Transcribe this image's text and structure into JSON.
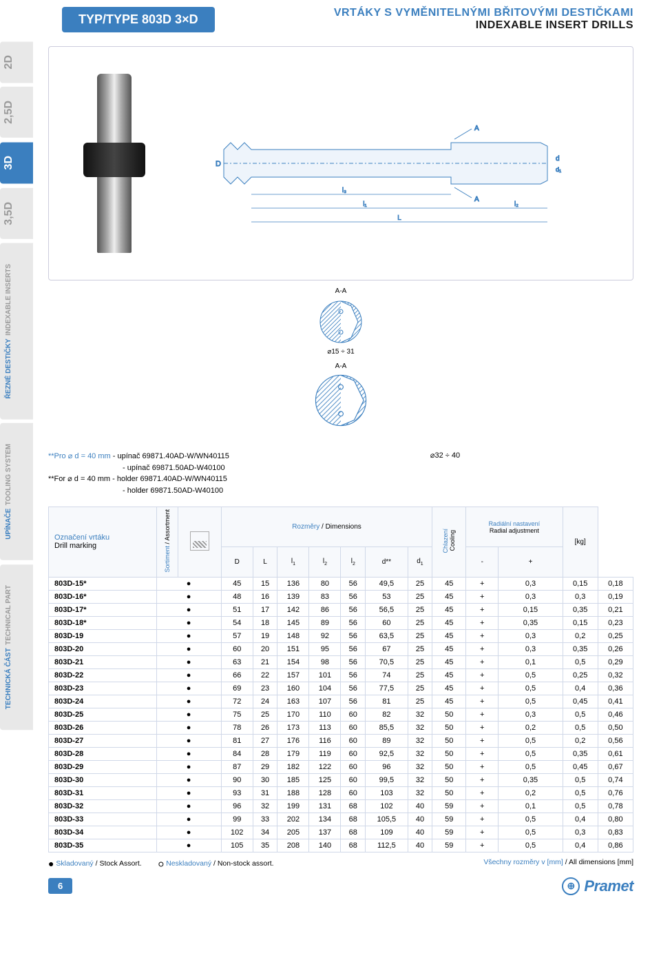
{
  "header": {
    "type_badge": "TYP/TYPE 803D 3×D",
    "title_cz": "VRTÁKY S VYMĚNITELNÝMI BŘITOVÝMI DESTIČKAMI",
    "title_en": "INDEXABLE INSERT DRILLS"
  },
  "side_tabs": [
    {
      "label": "2D",
      "active": false,
      "height": "std"
    },
    {
      "label": "2,5D",
      "active": false,
      "height": "std"
    },
    {
      "label": "3D",
      "active": true,
      "height": "std"
    },
    {
      "label": "3,5D",
      "active": false,
      "height": "std"
    },
    {
      "label_cz": "ŘEZNÉ DESTIČKY",
      "label_en": "INDEXABLE INSERTS",
      "active": false,
      "height": "tall",
      "multi": true
    },
    {
      "label_cz": "UPÍNAČE",
      "label_en": "TOOLING SYSTEM",
      "active": false,
      "height": "tall",
      "multi": true
    },
    {
      "label_cz": "TECHNICKÁ ČÁST",
      "label_en": "TECHNICAL PART",
      "active": false,
      "height": "tall",
      "multi": true
    }
  ],
  "schematic": {
    "dim_labels": [
      "D",
      "l₃",
      "l₁",
      "L",
      "A",
      "A",
      "l₂",
      "d",
      "d₁"
    ],
    "section_label": "A-A",
    "dia_small": "⌀15 ÷ 31",
    "dia_large": "⌀32 ÷ 40"
  },
  "notes": {
    "cz_prefix": "**Pro ⌀ d = 40 mm",
    "cz_line1": "- upínač 69871.40AD-W/WN40115",
    "cz_line2": "- upínač 69871.50AD-W40100",
    "en_prefix": "**For ⌀ d = 40 mm",
    "en_line1": "- holder 69871.40AD-W/WN40115",
    "en_line2": "- holder 69871.50AD-W40100"
  },
  "table": {
    "header": {
      "marking_cz": "Označení vrtáku",
      "marking_en": "Drill marking",
      "sortiment_cz": "Sortiment",
      "sortiment_en": "Assortment",
      "dimensions_cz": "Rozměry",
      "dimensions_en": "Dimensions",
      "cooling_cz": "Chlazení",
      "cooling_en": "Cooling",
      "radial_cz": "Radiální nastavení",
      "radial_en": "Radial adjustment",
      "weight": "[kg]",
      "cols": [
        "D",
        "L",
        "l₁",
        "l₂",
        "l₂",
        "d**",
        "d₁"
      ],
      "radial_cols": [
        "-",
        "+"
      ]
    },
    "rows": [
      {
        "marking": "803D-15*",
        "sort": "●",
        "D": "45",
        "L": "15",
        "l1": "136",
        "l2a": "80",
        "l2b": "56",
        "d_star": "49,5",
        "d1": "25",
        "extra": "45",
        "cool": "+",
        "rminus": "0,3",
        "rplus": "0,15",
        "kg": "0,18"
      },
      {
        "marking": "803D-16*",
        "sort": "●",
        "D": "48",
        "L": "16",
        "l1": "139",
        "l2a": "83",
        "l2b": "56",
        "d_star": "53",
        "d1": "25",
        "extra": "45",
        "cool": "+",
        "rminus": "0,3",
        "rplus": "0,3",
        "kg": "0,19"
      },
      {
        "marking": "803D-17*",
        "sort": "●",
        "D": "51",
        "L": "17",
        "l1": "142",
        "l2a": "86",
        "l2b": "56",
        "d_star": "56,5",
        "d1": "25",
        "extra": "45",
        "cool": "+",
        "rminus": "0,15",
        "rplus": "0,35",
        "kg": "0,21"
      },
      {
        "marking": "803D-18*",
        "sort": "●",
        "D": "54",
        "L": "18",
        "l1": "145",
        "l2a": "89",
        "l2b": "56",
        "d_star": "60",
        "d1": "25",
        "extra": "45",
        "cool": "+",
        "rminus": "0,35",
        "rplus": "0,15",
        "kg": "0,23"
      },
      {
        "marking": "803D-19",
        "sort": "●",
        "D": "57",
        "L": "19",
        "l1": "148",
        "l2a": "92",
        "l2b": "56",
        "d_star": "63,5",
        "d1": "25",
        "extra": "45",
        "cool": "+",
        "rminus": "0,3",
        "rplus": "0,2",
        "kg": "0,25"
      },
      {
        "marking": "803D-20",
        "sort": "●",
        "D": "60",
        "L": "20",
        "l1": "151",
        "l2a": "95",
        "l2b": "56",
        "d_star": "67",
        "d1": "25",
        "extra": "45",
        "cool": "+",
        "rminus": "0,3",
        "rplus": "0,35",
        "kg": "0,26"
      },
      {
        "marking": "803D-21",
        "sort": "●",
        "D": "63",
        "L": "21",
        "l1": "154",
        "l2a": "98",
        "l2b": "56",
        "d_star": "70,5",
        "d1": "25",
        "extra": "45",
        "cool": "+",
        "rminus": "0,1",
        "rplus": "0,5",
        "kg": "0,29"
      },
      {
        "marking": "803D-22",
        "sort": "●",
        "D": "66",
        "L": "22",
        "l1": "157",
        "l2a": "101",
        "l2b": "56",
        "d_star": "74",
        "d1": "25",
        "extra": "45",
        "cool": "+",
        "rminus": "0,5",
        "rplus": "0,25",
        "kg": "0,32"
      },
      {
        "marking": "803D-23",
        "sort": "●",
        "D": "69",
        "L": "23",
        "l1": "160",
        "l2a": "104",
        "l2b": "56",
        "d_star": "77,5",
        "d1": "25",
        "extra": "45",
        "cool": "+",
        "rminus": "0,5",
        "rplus": "0,4",
        "kg": "0,36"
      },
      {
        "marking": "803D-24",
        "sort": "●",
        "D": "72",
        "L": "24",
        "l1": "163",
        "l2a": "107",
        "l2b": "56",
        "d_star": "81",
        "d1": "25",
        "extra": "45",
        "cool": "+",
        "rminus": "0,5",
        "rplus": "0,45",
        "kg": "0,41"
      },
      {
        "marking": "803D-25",
        "sort": "●",
        "D": "75",
        "L": "25",
        "l1": "170",
        "l2a": "110",
        "l2b": "60",
        "d_star": "82",
        "d1": "32",
        "extra": "50",
        "cool": "+",
        "rminus": "0,3",
        "rplus": "0,5",
        "kg": "0,46"
      },
      {
        "marking": "803D-26",
        "sort": "●",
        "D": "78",
        "L": "26",
        "l1": "173",
        "l2a": "113",
        "l2b": "60",
        "d_star": "85,5",
        "d1": "32",
        "extra": "50",
        "cool": "+",
        "rminus": "0,2",
        "rplus": "0,5",
        "kg": "0,50"
      },
      {
        "marking": "803D-27",
        "sort": "●",
        "D": "81",
        "L": "27",
        "l1": "176",
        "l2a": "116",
        "l2b": "60",
        "d_star": "89",
        "d1": "32",
        "extra": "50",
        "cool": "+",
        "rminus": "0,5",
        "rplus": "0,2",
        "kg": "0,56"
      },
      {
        "marking": "803D-28",
        "sort": "●",
        "D": "84",
        "L": "28",
        "l1": "179",
        "l2a": "119",
        "l2b": "60",
        "d_star": "92,5",
        "d1": "32",
        "extra": "50",
        "cool": "+",
        "rminus": "0,5",
        "rplus": "0,35",
        "kg": "0,61"
      },
      {
        "marking": "803D-29",
        "sort": "●",
        "D": "87",
        "L": "29",
        "l1": "182",
        "l2a": "122",
        "l2b": "60",
        "d_star": "96",
        "d1": "32",
        "extra": "50",
        "cool": "+",
        "rminus": "0,5",
        "rplus": "0,45",
        "kg": "0,67"
      },
      {
        "marking": "803D-30",
        "sort": "●",
        "D": "90",
        "L": "30",
        "l1": "185",
        "l2a": "125",
        "l2b": "60",
        "d_star": "99,5",
        "d1": "32",
        "extra": "50",
        "cool": "+",
        "rminus": "0,35",
        "rplus": "0,5",
        "kg": "0,74"
      },
      {
        "marking": "803D-31",
        "sort": "●",
        "D": "93",
        "L": "31",
        "l1": "188",
        "l2a": "128",
        "l2b": "60",
        "d_star": "103",
        "d1": "32",
        "extra": "50",
        "cool": "+",
        "rminus": "0,2",
        "rplus": "0,5",
        "kg": "0,76"
      },
      {
        "marking": "803D-32",
        "sort": "●",
        "D": "96",
        "L": "32",
        "l1": "199",
        "l2a": "131",
        "l2b": "68",
        "d_star": "102",
        "d1": "40",
        "extra": "59",
        "cool": "+",
        "rminus": "0,1",
        "rplus": "0,5",
        "kg": "0,78"
      },
      {
        "marking": "803D-33",
        "sort": "●",
        "D": "99",
        "L": "33",
        "l1": "202",
        "l2a": "134",
        "l2b": "68",
        "d_star": "105,5",
        "d1": "40",
        "extra": "59",
        "cool": "+",
        "rminus": "0,5",
        "rplus": "0,4",
        "kg": "0,80"
      },
      {
        "marking": "803D-34",
        "sort": "●",
        "D": "102",
        "L": "34",
        "l1": "205",
        "l2a": "137",
        "l2b": "68",
        "d_star": "109",
        "d1": "40",
        "extra": "59",
        "cool": "+",
        "rminus": "0,5",
        "rplus": "0,3",
        "kg": "0,83"
      },
      {
        "marking": "803D-35",
        "sort": "●",
        "D": "105",
        "L": "35",
        "l1": "208",
        "l2a": "140",
        "l2b": "68",
        "d_star": "112,5",
        "d1": "40",
        "extra": "59",
        "cool": "+",
        "rminus": "0,5",
        "rplus": "0,4",
        "kg": "0,86"
      }
    ]
  },
  "legend": {
    "stock_cz": "Skladovaný",
    "stock_en": "Stock Assort.",
    "nonstock_cz": "Neskladovaný",
    "nonstock_en": "Non-stock assort.",
    "units_cz": "Všechny rozměry v [mm]",
    "units_en": "All dimensions [mm]"
  },
  "footer": {
    "page_num": "6",
    "brand": "Pramet"
  },
  "colors": {
    "primary": "#3b7fbf",
    "tab_inactive_bg": "#e8e8e8",
    "tab_inactive_fg": "#9a9a9a",
    "border": "#d0d8e8"
  }
}
